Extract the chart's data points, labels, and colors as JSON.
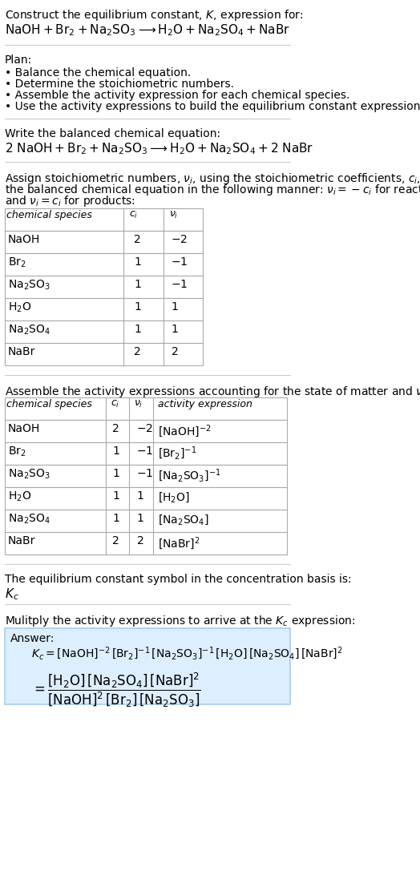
{
  "title_line1": "Construct the equilibrium constant, $K$, expression for:",
  "title_line2": "$\\mathrm{NaOH + Br_2 + Na_2SO_3 \\longrightarrow H_2O + Na_2SO_4 + NaBr}$",
  "plan_header": "Plan:",
  "plan_items": [
    "\\bullet\\ Balance the chemical equation.",
    "\\bullet\\ Determine the stoichiometric numbers.",
    "\\bullet\\ Assemble the activity expression for each chemical species.",
    "\\bullet\\ Use the activity expressions to build the equilibrium constant expression."
  ],
  "balanced_header": "Write the balanced chemical equation:",
  "balanced_eq": "$\\mathrm{2\\ NaOH + Br_2 + Na_2SO_3 \\longrightarrow H_2O + Na_2SO_4 + 2\\ NaBr}$",
  "stoich_header": "Assign stoichiometric numbers, $\\nu_i$, using the stoichiometric coefficients, $c_i$, from\nthe balanced chemical equation in the following manner: $\\nu_i = -c_i$ for reactants\nand $\\nu_i = c_i$ for products:",
  "table1_cols": [
    "chemical species",
    "$c_i$",
    "$\\nu_i$"
  ],
  "table1_rows": [
    [
      "NaOH",
      "2",
      "$-2$"
    ],
    [
      "$\\mathrm{Br_2}$",
      "1",
      "$-1$"
    ],
    [
      "$\\mathrm{Na_2SO_3}$",
      "1",
      "$-1$"
    ],
    [
      "$\\mathrm{H_2O}$",
      "1",
      "$1$"
    ],
    [
      "$\\mathrm{Na_2SO_4}$",
      "1",
      "$1$"
    ],
    [
      "NaBr",
      "2",
      "$2$"
    ]
  ],
  "activity_header": "Assemble the activity expressions accounting for the state of matter and $\\nu_i$:",
  "table2_cols": [
    "chemical species",
    "$c_i$",
    "$\\nu_i$",
    "activity expression"
  ],
  "table2_rows": [
    [
      "NaOH",
      "2",
      "$-2$",
      "$[\\mathrm{NaOH}]^{-2}$"
    ],
    [
      "$\\mathrm{Br_2}$",
      "1",
      "$-1$",
      "$[\\mathrm{Br_2}]^{-1}$"
    ],
    [
      "$\\mathrm{Na_2SO_3}$",
      "1",
      "$-1$",
      "$[\\mathrm{Na_2SO_3}]^{-1}$"
    ],
    [
      "$\\mathrm{H_2O}$",
      "1",
      "$1$",
      "$[\\mathrm{H_2O}]$"
    ],
    [
      "$\\mathrm{Na_2SO_4}$",
      "1",
      "$1$",
      "$[\\mathrm{Na_2SO_4}]$"
    ],
    [
      "NaBr",
      "2",
      "$2$",
      "$[\\mathrm{NaBr}]^{2}$"
    ]
  ],
  "kc_symbol_header": "The equilibrium constant symbol in the concentration basis is:",
  "kc_symbol": "$K_c$",
  "multiply_header": "Mulitply the activity expressions to arrive at the $K_c$ expression:",
  "answer_label": "Answer:",
  "answer_line1": "$K_c = [\\mathrm{NaOH}]^{-2}\\,[\\mathrm{Br_2}]^{-1}\\,[\\mathrm{Na_2SO_3}]^{-1}\\,[\\mathrm{H_2O}]\\,[\\mathrm{Na_2SO_4}]\\,[\\mathrm{NaBr}]^{2}$",
  "answer_line2": "$= \\dfrac{[\\mathrm{H_2O}]\\,[\\mathrm{Na_2SO_4}]\\,[\\mathrm{NaBr}]^{2}}{[\\mathrm{NaOH}]^{2}\\,[\\mathrm{Br_2}]\\,[\\mathrm{Na_2SO_3}]}$",
  "bg_color": "#ffffff",
  "answer_box_color": "#ddeeff",
  "table_line_color": "#aaaaaa",
  "text_color": "#000000",
  "separator_color": "#cccccc"
}
